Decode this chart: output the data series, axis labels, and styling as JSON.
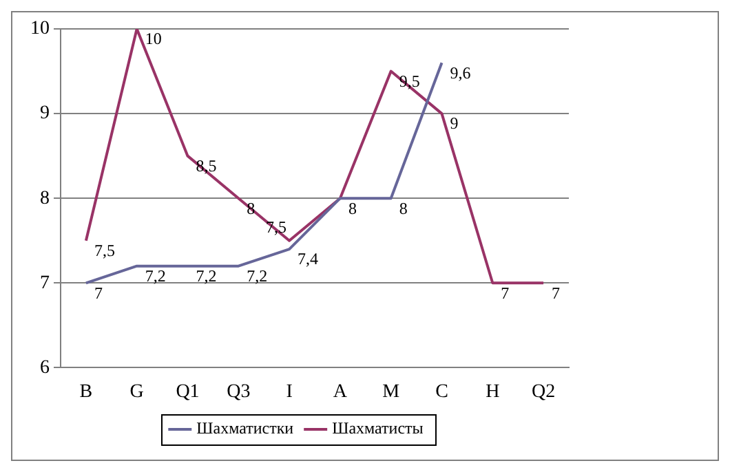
{
  "chart_data": {
    "type": "line",
    "categories": [
      "B",
      "G",
      "Q1",
      "Q3",
      "I",
      "A",
      "M",
      "C",
      "H",
      "Q2"
    ],
    "series": [
      {
        "name": "Шахматистки",
        "color": "#666699",
        "values": [
          7,
          7.2,
          7.2,
          7.2,
          7.4,
          8,
          8,
          9.6,
          null,
          null
        ],
        "value_labels": [
          "7",
          "7,2",
          "7,2",
          "7,2",
          "7,4",
          null,
          "8",
          "9,6",
          null,
          null
        ]
      },
      {
        "name": "Шахматисты",
        "color": "#993366",
        "values": [
          7.5,
          10,
          8.5,
          8,
          7.5,
          8,
          9.5,
          9,
          7,
          7
        ],
        "value_labels": [
          "7,5",
          "10",
          "8,5",
          "8",
          "7,5",
          "8",
          "9,5",
          "9",
          "7",
          "7"
        ]
      }
    ],
    "ylim": [
      6,
      10
    ],
    "yticks": [
      6,
      7,
      8,
      9,
      10
    ],
    "grid": "y",
    "legend": "bottom",
    "marker": "none",
    "line_style": "solid"
  }
}
